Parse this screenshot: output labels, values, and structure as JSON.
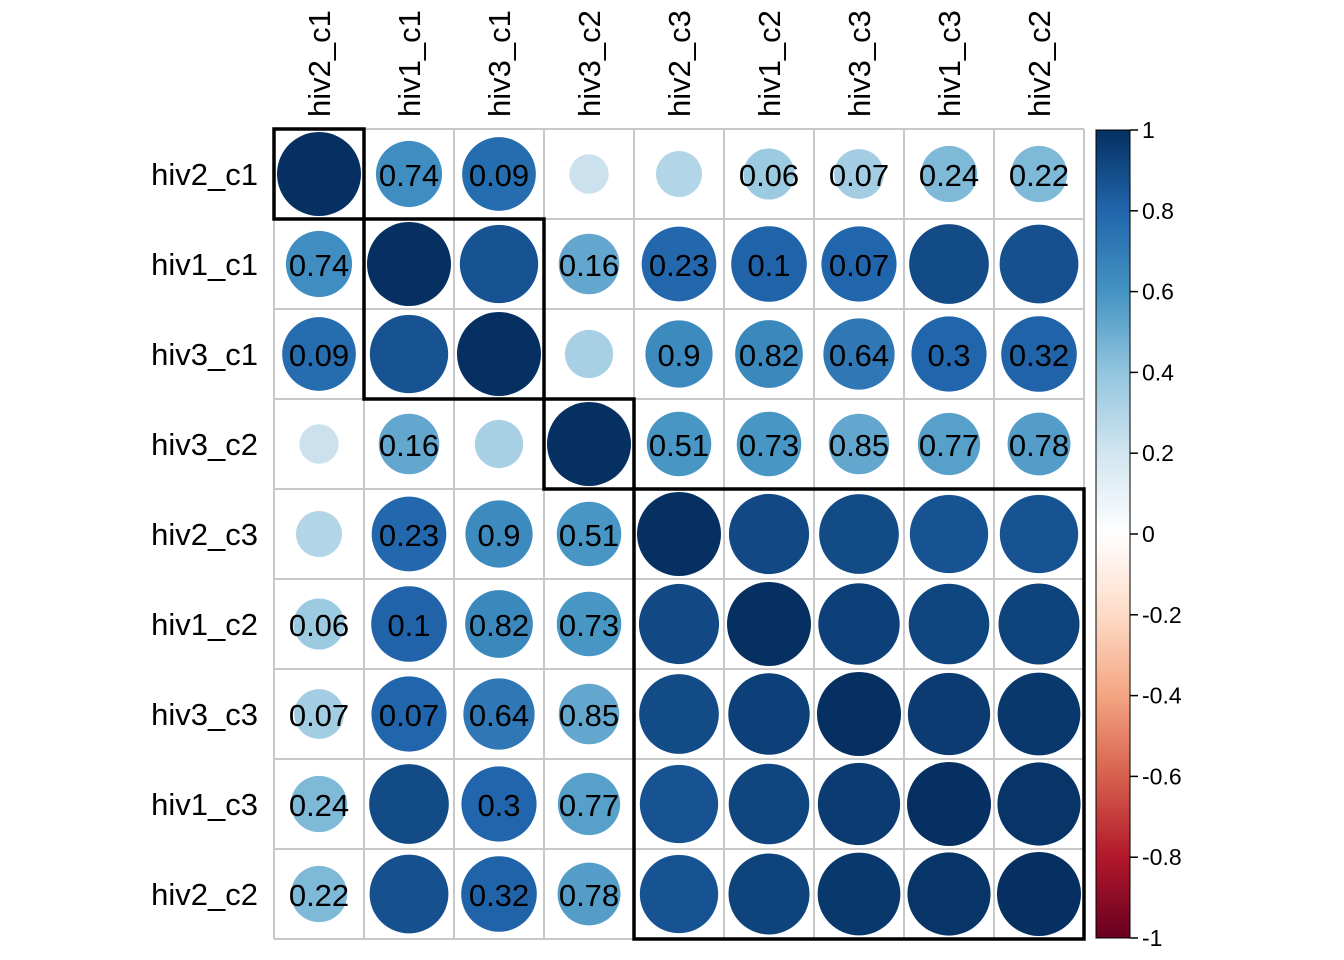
{
  "chart_data": {
    "type": "heatmap",
    "subtype": "correlation-circle",
    "labels": [
      "hiv2_c1",
      "hiv1_c1",
      "hiv3_c1",
      "hiv3_c2",
      "hiv2_c3",
      "hiv1_c2",
      "hiv3_c3",
      "hiv1_c3",
      "hiv2_c2"
    ],
    "correlation": [
      [
        1.0,
        0.62,
        0.77,
        0.22,
        0.3,
        0.37,
        0.35,
        0.45,
        0.45
      ],
      [
        0.62,
        1.0,
        0.87,
        0.52,
        0.79,
        0.81,
        0.8,
        0.9,
        0.88
      ],
      [
        0.77,
        0.87,
        1.0,
        0.33,
        0.64,
        0.65,
        0.72,
        0.8,
        0.81
      ],
      [
        0.22,
        0.52,
        0.33,
        1.0,
        0.59,
        0.59,
        0.52,
        0.55,
        0.56
      ],
      [
        0.3,
        0.79,
        0.64,
        0.59,
        1.0,
        0.91,
        0.9,
        0.87,
        0.87
      ],
      [
        0.37,
        0.81,
        0.65,
        0.59,
        0.91,
        1.0,
        0.94,
        0.92,
        0.93
      ],
      [
        0.35,
        0.8,
        0.72,
        0.52,
        0.9,
        0.94,
        1.0,
        0.96,
        0.97
      ],
      [
        0.45,
        0.9,
        0.8,
        0.55,
        0.87,
        0.92,
        0.96,
        1.0,
        0.98
      ],
      [
        0.45,
        0.88,
        0.81,
        0.56,
        0.87,
        0.93,
        0.97,
        0.98,
        1.0
      ]
    ],
    "pvalues": [
      [
        null,
        "0.74",
        "0.09",
        null,
        null,
        "0.06",
        "0.07",
        "0.24",
        "0.22"
      ],
      [
        "0.74",
        null,
        null,
        "0.16",
        "0.23",
        "0.1",
        "0.07",
        null,
        null
      ],
      [
        "0.09",
        null,
        null,
        null,
        "0.9",
        "0.82",
        "0.64",
        "0.3",
        "0.32"
      ],
      [
        null,
        "0.16",
        null,
        null,
        "0.51",
        "0.73",
        "0.85",
        "0.77",
        "0.78"
      ],
      [
        null,
        "0.23",
        "0.9",
        "0.51",
        null,
        null,
        null,
        null,
        null
      ],
      [
        "0.06",
        "0.1",
        "0.82",
        "0.73",
        null,
        null,
        null,
        null,
        null
      ],
      [
        "0.07",
        "0.07",
        "0.64",
        "0.85",
        null,
        null,
        null,
        null,
        null
      ],
      [
        "0.24",
        null,
        "0.3",
        "0.77",
        null,
        null,
        null,
        null,
        null
      ],
      [
        "0.22",
        null,
        "0.32",
        "0.78",
        null,
        null,
        null,
        null,
        null
      ]
    ],
    "clusters": [
      [
        0,
        0
      ],
      [
        1,
        2
      ],
      [
        3,
        3
      ],
      [
        4,
        8
      ]
    ],
    "colorbar": {
      "range": [
        -1,
        1
      ],
      "ticks": [
        "1",
        "0.8",
        "0.6",
        "0.4",
        "0.2",
        "0",
        "-0.2",
        "-0.4",
        "-0.6",
        "-0.8",
        "-1"
      ],
      "palette": [
        "#67001F",
        "#B2182B",
        "#D6604D",
        "#F4A582",
        "#FDDBC7",
        "#FFFFFF",
        "#D1E5F0",
        "#92C5DE",
        "#4393C3",
        "#2166AC",
        "#053061"
      ]
    },
    "grid": true,
    "title": "",
    "xlabel": "",
    "ylabel": ""
  }
}
